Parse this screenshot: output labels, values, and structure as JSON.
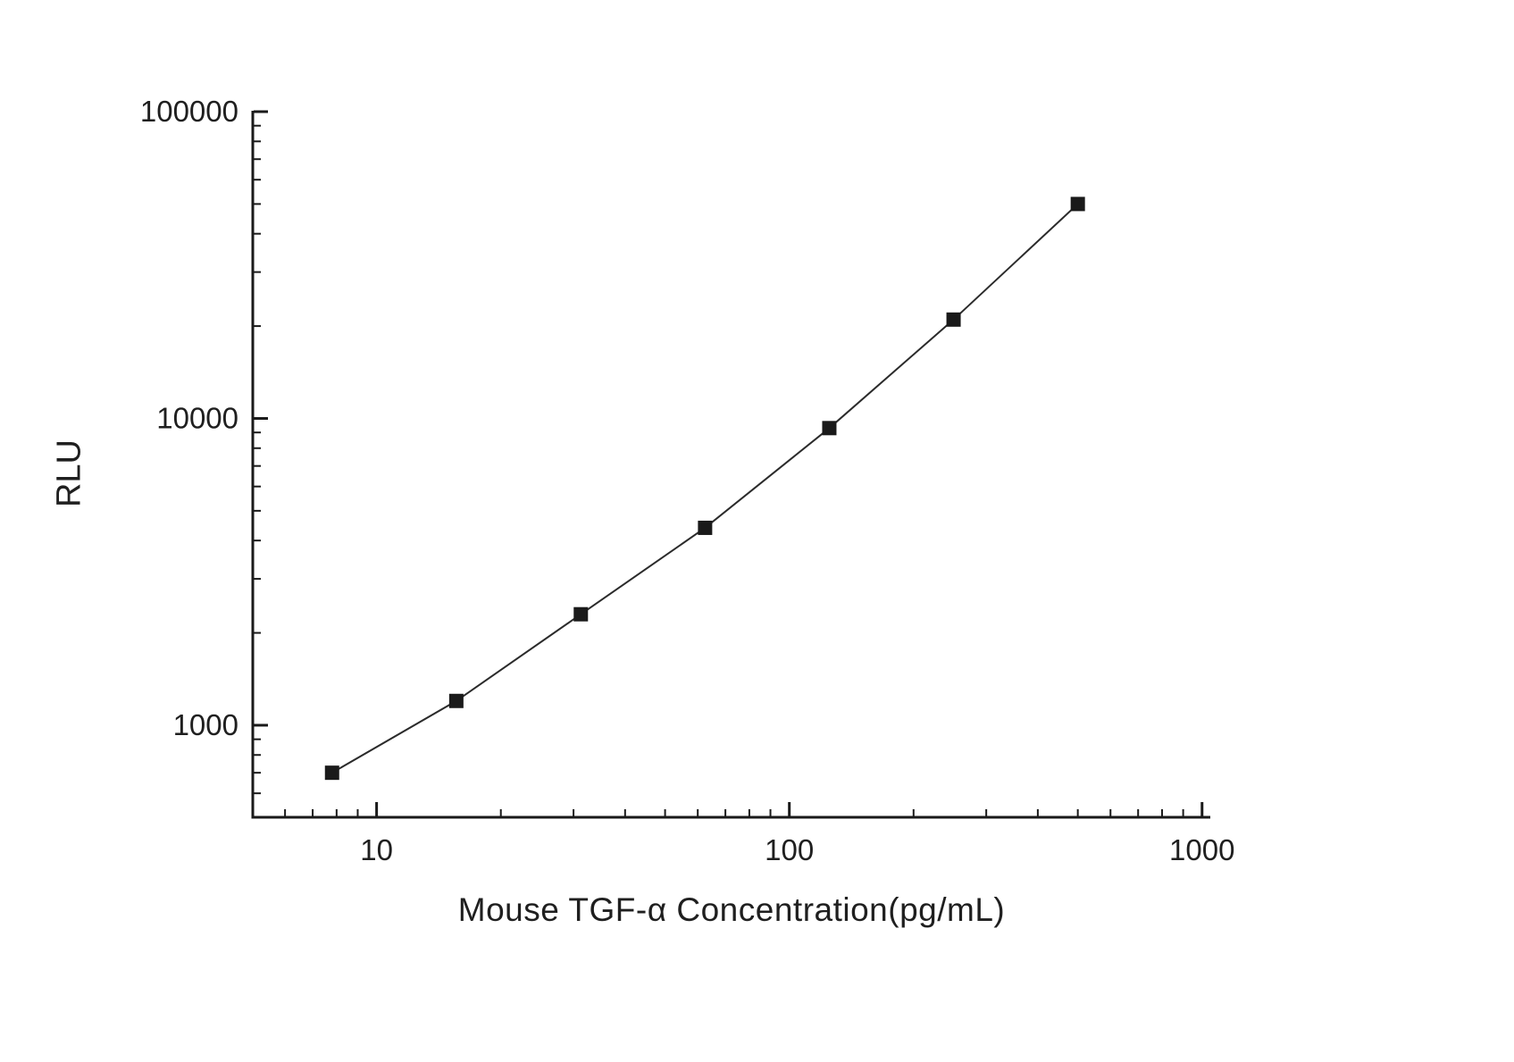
{
  "chart_data": {
    "type": "line",
    "title": "",
    "xlabel": "Mouse TGF-α  Concentration(pg/mL)",
    "ylabel": "RLU",
    "x_scale": "log",
    "y_scale": "log",
    "x": [
      7.8,
      15.6,
      31.25,
      62.5,
      125,
      250,
      500
    ],
    "y": [
      700,
      1200,
      2300,
      4400,
      9300,
      21000,
      50000
    ],
    "x_log_range": [
      0.7,
      3.02
    ],
    "y_log_range": [
      2.7,
      5.0
    ],
    "x_ticks": [
      {
        "value": 10,
        "label": "10"
      },
      {
        "value": 100,
        "label": "100"
      },
      {
        "value": 1000,
        "label": "1000"
      }
    ],
    "y_ticks": [
      {
        "value": 1000,
        "label": "1000"
      },
      {
        "value": 10000,
        "label": "10000"
      },
      {
        "value": 100000,
        "label": "100000"
      }
    ],
    "grid": "off",
    "legend": "none",
    "axis_color": "#1a1a1a",
    "text_color": "#1f1f1f",
    "line_color": "#2b2b2b",
    "marker_color": "#1a1a1a",
    "marker_shape": "square",
    "marker_size": 16
  }
}
